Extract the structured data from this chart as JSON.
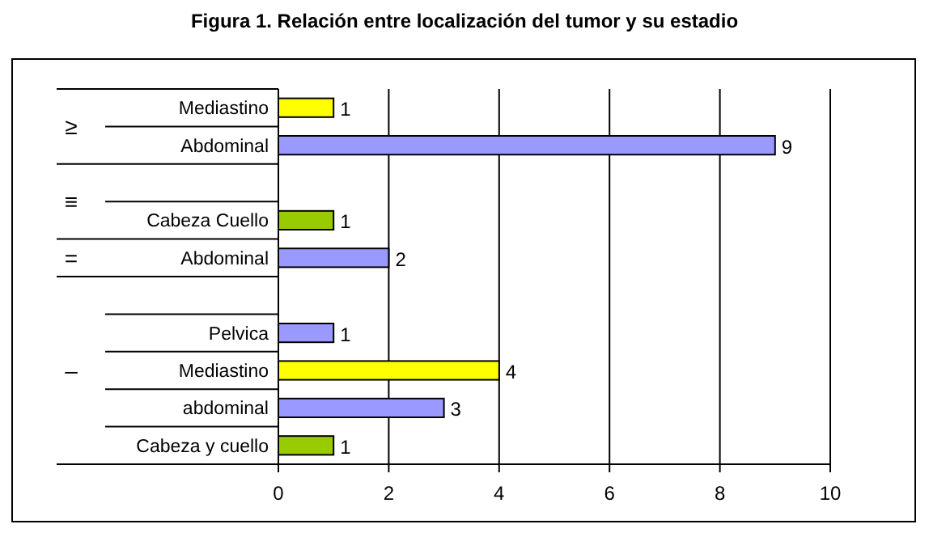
{
  "chart_data": {
    "type": "bar",
    "orientation": "horizontal",
    "title": "Figura 1. Relación entre localización del tumor y su estadio",
    "categories": [
      "Mediastino",
      "Abdominal",
      null,
      "Cabeza Cuello",
      "Abdominal",
      null,
      "Pelvica",
      "Mediastino",
      "abdominal",
      "Cabeza y cuello"
    ],
    "values": [
      1,
      9,
      null,
      1,
      2,
      null,
      1,
      4,
      3,
      1
    ],
    "colors": [
      "#ffff00",
      "#9999ff",
      null,
      "#99cc00",
      "#9999ff",
      null,
      "#9999ff",
      "#ffff00",
      "#9999ff",
      "#99cc00"
    ],
    "annotations": [
      "≥",
      "≡",
      "=",
      "–"
    ],
    "xlim": [
      0,
      10
    ],
    "xticks": [
      0,
      2,
      4,
      6,
      8,
      10
    ],
    "grid": "x",
    "data_labels": true
  }
}
